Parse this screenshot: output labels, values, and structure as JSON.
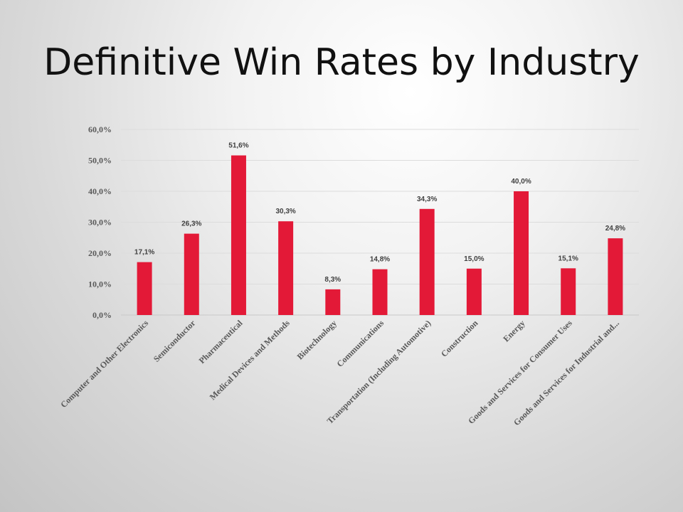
{
  "slide": {
    "title": "Definitive Win Rates by Industry"
  },
  "chart_data": {
    "type": "bar",
    "title": "",
    "xlabel": "",
    "ylabel": "",
    "ylim": [
      0,
      60
    ],
    "yticks": [
      "0,0%",
      "10,0%",
      "20,0%",
      "30,0%",
      "40,0%",
      "50,0%",
      "60,0%"
    ],
    "grid": true,
    "legend": "none",
    "bar_color": "#e31937",
    "categories": [
      "Computer and Other Electronics",
      "Semiconductor",
      "Pharmaceutical",
      "Medical Devices and Methods",
      "Biotechnology",
      "Communications",
      "Transportation (Including Automotive)",
      "Construction",
      "Energy",
      "Goods and Services for Consumer Uses",
      "Goods and Services for Industrial and..."
    ],
    "values": [
      17.1,
      26.3,
      51.6,
      30.3,
      8.3,
      14.8,
      34.3,
      15.0,
      40.0,
      15.1,
      24.8
    ],
    "data_labels": [
      "17,1%",
      "26,3%",
      "51,6%",
      "30,3%",
      "8,3%",
      "14,8%",
      "34,3%",
      "15,0%",
      "40,0%",
      "15,1%",
      "24,8%"
    ]
  }
}
